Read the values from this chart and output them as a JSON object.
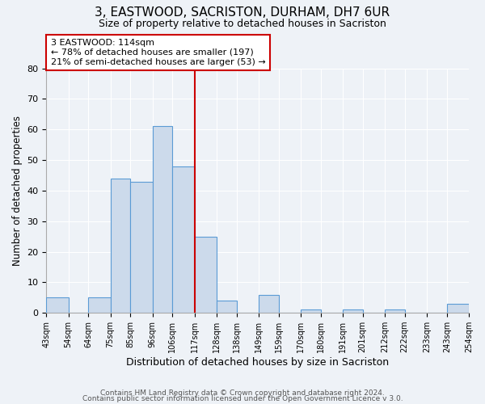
{
  "title": "3, EASTWOOD, SACRISTON, DURHAM, DH7 6UR",
  "subtitle": "Size of property relative to detached houses in Sacriston",
  "xlabel": "Distribution of detached houses by size in Sacriston",
  "ylabel": "Number of detached properties",
  "bin_labels": [
    "43sqm",
    "54sqm",
    "64sqm",
    "75sqm",
    "85sqm",
    "96sqm",
    "106sqm",
    "117sqm",
    "128sqm",
    "138sqm",
    "149sqm",
    "159sqm",
    "170sqm",
    "180sqm",
    "191sqm",
    "201sqm",
    "212sqm",
    "222sqm",
    "233sqm",
    "243sqm",
    "254sqm"
  ],
  "bin_counts": [
    5,
    0,
    5,
    44,
    43,
    61,
    48,
    25,
    4,
    0,
    6,
    0,
    1,
    0,
    1,
    0,
    1,
    0,
    0,
    3,
    0
  ],
  "bin_edges": [
    43,
    54,
    64,
    75,
    85,
    96,
    106,
    117,
    128,
    138,
    149,
    159,
    170,
    180,
    191,
    201,
    212,
    222,
    233,
    243,
    254
  ],
  "property_line_x": 117,
  "annotation_title": "3 EASTWOOD: 114sqm",
  "annotation_line1": "← 78% of detached houses are smaller (197)",
  "annotation_line2": "21% of semi-detached houses are larger (53) →",
  "bar_color": "#ccdaeb",
  "bar_edge_color": "#5b9bd5",
  "line_color": "#cc0000",
  "annotation_box_edge": "#cc0000",
  "background_color": "#eef2f7",
  "ylim": [
    0,
    80
  ],
  "yticks": [
    0,
    10,
    20,
    30,
    40,
    50,
    60,
    70,
    80
  ],
  "footer_line1": "Contains HM Land Registry data © Crown copyright and database right 2024.",
  "footer_line2": "Contains public sector information licensed under the Open Government Licence v 3.0."
}
